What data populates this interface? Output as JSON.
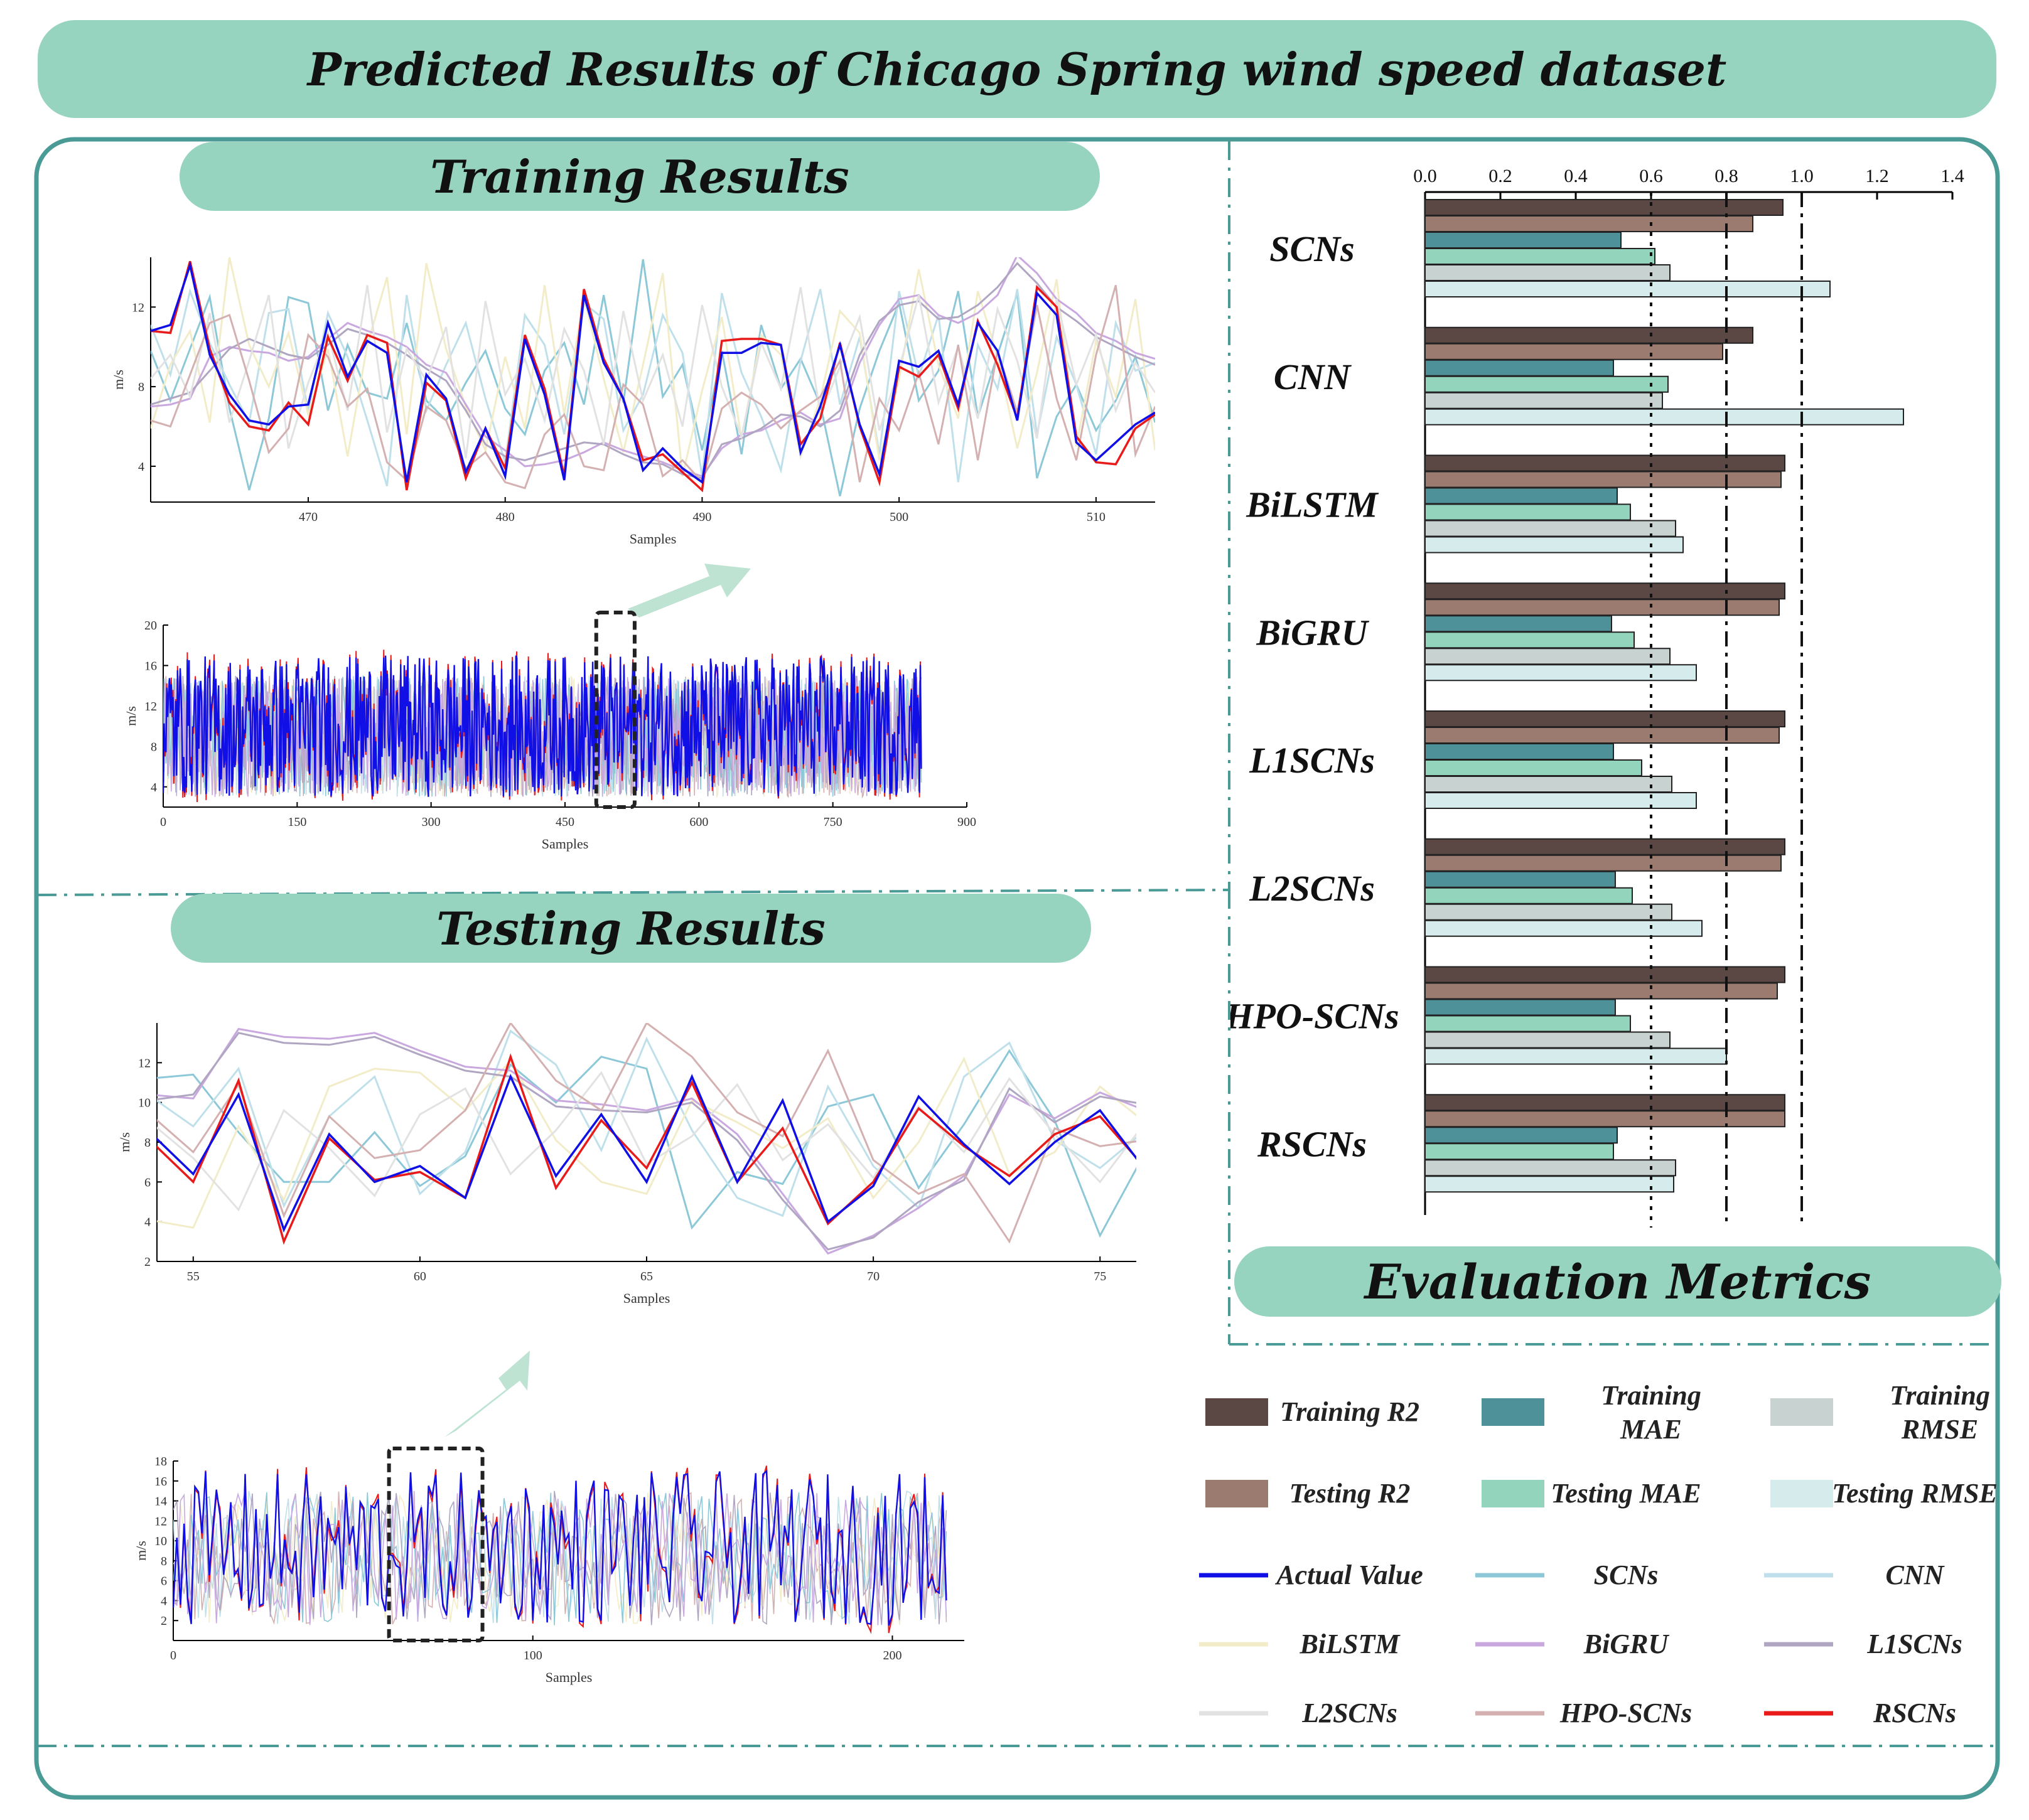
{
  "title": "Predicted Results of Chicago Spring wind speed dataset",
  "sections": {
    "training": "Training Results",
    "testing": "Testing Results",
    "evaluation": "Evaluation Metrics"
  },
  "colors": {
    "pill": "#97d4c0",
    "frame": "#4a9a96",
    "actual": "#1010e6",
    "rscns": "#e81a1a",
    "train_r2": "#5b4743",
    "test_r2": "#9b7b70",
    "train_mae": "#4f9199",
    "test_mae": "#93d4bc",
    "train_rmse": "#c8d2d0",
    "test_rmse": "#d6ebec"
  },
  "legend": [
    {
      "label": "Training R2",
      "type": "box",
      "color": "#5b4743"
    },
    {
      "label": "Training MAE",
      "type": "box",
      "color": "#4f9199"
    },
    {
      "label": "Training RMSE",
      "type": "box",
      "color": "#c8d2d0"
    },
    {
      "label": "Testing R2",
      "type": "box",
      "color": "#9b7b70"
    },
    {
      "label": "Testing MAE",
      "type": "box",
      "color": "#93d4bc"
    },
    {
      "label": "Testing RMSE",
      "type": "box",
      "color": "#d6ebec"
    },
    {
      "label": "Actual Value",
      "type": "line",
      "color": "#1010e6"
    },
    {
      "label": "SCNs",
      "type": "line",
      "color": "#8cc8d8"
    },
    {
      "label": "CNN",
      "type": "line",
      "color": "#bfe0ea"
    },
    {
      "label": "BiLSTM",
      "type": "line",
      "color": "#f2ecc8"
    },
    {
      "label": "BiGRU",
      "type": "line",
      "color": "#c9a8e0"
    },
    {
      "label": "L1SCNs",
      "type": "line",
      "color": "#b0a6c2"
    },
    {
      "label": "L2SCNs",
      "type": "line",
      "color": "#e2e2e2"
    },
    {
      "label": "HPO-SCNs",
      "type": "line",
      "color": "#d4b0b0"
    },
    {
      "label": "RSCNs",
      "type": "line",
      "color": "#e81a1a"
    }
  ],
  "chart_data": [
    {
      "id": "metrics",
      "type": "bar",
      "title": "Evaluation Metrics",
      "orientation": "horizontal",
      "categories": [
        "SCNs",
        "CNN",
        "BiLSTM",
        "BiGRU",
        "L1SCNs",
        "L2SCNs",
        "HPO-SCNs",
        "RSCNs"
      ],
      "series": [
        {
          "name": "Training R2",
          "values": [
            0.95,
            0.87,
            0.955,
            0.955,
            0.955,
            0.955,
            0.955,
            0.955
          ]
        },
        {
          "name": "Testing R2",
          "values": [
            0.87,
            0.79,
            0.945,
            0.94,
            0.94,
            0.945,
            0.935,
            0.955
          ]
        },
        {
          "name": "Training MAE",
          "values": [
            0.52,
            0.5,
            0.51,
            0.495,
            0.5,
            0.505,
            0.505,
            0.51
          ]
        },
        {
          "name": "Testing MAE",
          "values": [
            0.61,
            0.645,
            0.545,
            0.555,
            0.575,
            0.55,
            0.545,
            0.5
          ]
        },
        {
          "name": "Training RMSE",
          "values": [
            0.65,
            0.63,
            0.665,
            0.65,
            0.655,
            0.655,
            0.65,
            0.665
          ]
        },
        {
          "name": "Testing RMSE",
          "values": [
            1.075,
            1.27,
            0.685,
            0.72,
            0.72,
            0.735,
            0.8,
            0.66
          ]
        }
      ],
      "xlim": [
        0,
        1.4
      ],
      "xticks": [
        "0.0",
        "0.2",
        "0.4",
        "0.6",
        "0.8",
        "1.0",
        "1.2",
        "1.4"
      ],
      "reference_lines": [
        0.6,
        0.8,
        1.0
      ]
    },
    {
      "id": "train-zoom",
      "type": "line",
      "xlabel": "Samples",
      "ylabel": "m/s",
      "xlim": [
        462,
        513
      ],
      "ylim": [
        2.2,
        14.5
      ],
      "xticks": [
        470,
        480,
        490,
        500,
        510
      ],
      "yticks": [
        4,
        8,
        12
      ],
      "x": [
        462,
        463,
        464,
        465,
        466,
        467,
        468,
        469,
        470,
        471,
        472,
        473,
        474,
        475,
        476,
        477,
        478,
        479,
        480,
        481,
        482,
        483,
        484,
        485,
        486,
        487,
        488,
        489,
        490,
        491,
        492,
        493,
        494,
        495,
        496,
        497,
        498,
        499,
        500,
        501,
        502,
        503,
        504,
        505,
        506,
        507,
        508,
        509,
        510,
        511,
        512,
        513
      ],
      "actual": [
        10.8,
        11.1,
        14.1,
        9.6,
        7.6,
        6.3,
        6.1,
        7.0,
        7.1,
        11.2,
        8.5,
        10.3,
        9.7,
        3.2,
        8.6,
        7.4,
        3.7,
        5.9,
        3.5,
        10.4,
        7.6,
        3.3,
        12.6,
        9.2,
        7.4,
        3.8,
        4.9,
        3.9,
        3.2,
        9.7,
        9.7,
        10.2,
        10.1,
        4.7,
        7.0,
        10.1,
        6.1,
        3.6,
        9.3,
        9.0,
        9.8,
        7.1,
        11.2,
        9.8,
        6.3,
        12.7,
        11.6,
        5.2,
        4.3,
        5.2,
        6.1,
        6.7
      ],
      "rscns": [
        10.8,
        10.7,
        14.3,
        9.9,
        7.2,
        6.0,
        5.8,
        7.2,
        6.1,
        10.5,
        8.3,
        10.6,
        10.2,
        2.8,
        8.2,
        7.3,
        3.4,
        5.9,
        3.9,
        10.6,
        7.9,
        3.5,
        12.9,
        9.4,
        7.4,
        4.3,
        4.6,
        3.7,
        2.8,
        10.3,
        10.4,
        10.4,
        10.1,
        5.1,
        6.4,
        10.2,
        6.0,
        3.2,
        9.0,
        8.5,
        9.6,
        6.9,
        11.3,
        9.1,
        6.4,
        13.0,
        12.0,
        5.5,
        4.2,
        4.1,
        5.9,
        6.6
      ],
      "others": [
        {
          "color": "#8cc8d8",
          "values": [
            9.8,
            7.3,
            9.9,
            12.5,
            6.9,
            2.8,
            6.4,
            12.5,
            12.2,
            6.8,
            10.1,
            7.7,
            7.4,
            11.2,
            7.3,
            6.3,
            8.2,
            9.8,
            6.9,
            5.6,
            8.8,
            10.2,
            7.1,
            12.6,
            7.2,
            14.4,
            7.5,
            9.1,
            4.8,
            9.8,
            4.6,
            11.1,
            7.9,
            9.4,
            7.1,
            2.5,
            6.9,
            9.8,
            12.2,
            7.3,
            8.8,
            12.8,
            6.5,
            9.6,
            12.7,
            3.4,
            6.5,
            8.1,
            5.8,
            7.3,
            9.5,
            6.2
          ]
        },
        {
          "color": "#bfe0ea",
          "values": [
            11.1,
            8.6,
            12.8,
            10.2,
            8.1,
            6.2,
            11.7,
            11.9,
            6.8,
            11.7,
            9.5,
            6.3,
            3.0,
            12.6,
            6.8,
            9.1,
            11.2,
            7.4,
            4.2,
            11.6,
            10.1,
            5.6,
            12.2,
            11.4,
            5.8,
            7.6,
            11.6,
            9.7,
            3.5,
            12.7,
            8.7,
            6.5,
            3.8,
            9.3,
            12.9,
            7.1,
            10.5,
            4.6,
            12.8,
            8.5,
            11.6,
            3.2,
            10.1,
            7.9,
            12.9,
            5.6,
            10.5,
            8.1,
            4.6,
            11.2,
            8.8,
            9.2
          ]
        },
        {
          "color": "#f2ecc8",
          "values": [
            5.9,
            9.1,
            10.8,
            6.2,
            14.5,
            10.1,
            8.0,
            10.7,
            6.6,
            9.9,
            4.5,
            10.1,
            13.5,
            5.6,
            14.2,
            9.9,
            7.0,
            4.8,
            9.5,
            5.9,
            13.1,
            6.6,
            12.5,
            8.4,
            4.7,
            9.1,
            13.7,
            3.5,
            7.8,
            11.5,
            5.4,
            10.6,
            9.6,
            4.5,
            7.4,
            11.8,
            10.7,
            4.3,
            8.4,
            13.9,
            9.1,
            6.4,
            12.8,
            9.5,
            4.9,
            8.7,
            13.4,
            5.0,
            10.3,
            7.5,
            12.4,
            4.8
          ]
        },
        {
          "color": "#c9a8e0",
          "values": [
            7.0,
            7.1,
            7.4,
            9.5,
            10.0,
            9.8,
            9.7,
            9.3,
            9.5,
            10.4,
            11.2,
            10.8,
            10.5,
            10.0,
            9.1,
            8.7,
            7.1,
            5.5,
            4.8,
            4.0,
            4.1,
            4.3,
            4.7,
            5.2,
            4.8,
            4.5,
            4.2,
            3.8,
            3.5,
            4.9,
            5.6,
            5.8,
            6.3,
            6.7,
            6.1,
            6.4,
            9.2,
            11.1,
            12.4,
            12.6,
            11.6,
            11.2,
            11.7,
            12.6,
            14.6,
            13.7,
            12.4,
            11.7,
            10.7,
            10.3,
            9.7,
            9.4
          ]
        },
        {
          "color": "#b0a6c2",
          "values": [
            7.1,
            7.4,
            7.7,
            8.8,
            9.9,
            10.4,
            10.0,
            9.6,
            9.4,
            10.1,
            10.9,
            10.6,
            10.2,
            9.6,
            8.9,
            8.3,
            6.8,
            5.1,
            4.5,
            4.3,
            4.6,
            4.9,
            5.2,
            5.1,
            4.6,
            4.2,
            4.1,
            3.6,
            3.4,
            5.1,
            5.4,
            5.9,
            6.6,
            6.5,
            6.0,
            6.8,
            9.6,
            11.3,
            12.1,
            12.3,
            11.4,
            11.5,
            12.1,
            13.0,
            14.2,
            13.2,
            12.0,
            11.3,
            10.5,
            10.0,
            9.5,
            9.1
          ]
        },
        {
          "color": "#e2e2e2",
          "values": [
            8.4,
            9.6,
            7.5,
            11.7,
            6.2,
            9.3,
            12.6,
            4.9,
            8.2,
            10.7,
            6.8,
            13.1,
            5.7,
            9.9,
            8.3,
            11.0,
            4.4,
            12.3,
            7.6,
            9.4,
            6.3,
            10.9,
            8.8,
            5.1,
            11.8,
            7.3,
            9.6,
            6.0,
            12.1,
            8.0,
            5.5,
            10.2,
            7.9,
            13.0,
            6.6,
            9.0,
            11.5,
            5.8,
            8.9,
            12.6,
            7.2,
            10.0,
            6.4,
            11.9,
            9.3,
            5.4,
            12.4,
            8.1,
            10.6,
            6.8,
            9.2,
            7.7
          ]
        },
        {
          "color": "#d4b0b0",
          "values": [
            6.3,
            6.0,
            8.6,
            11.2,
            11.6,
            8.3,
            4.7,
            5.9,
            10.6,
            9.5,
            7.0,
            7.9,
            4.2,
            3.3,
            7.0,
            6.3,
            3.9,
            4.7,
            3.2,
            2.9,
            5.6,
            6.6,
            4.0,
            3.8,
            8.1,
            7.1,
            3.5,
            4.3,
            3.2,
            6.9,
            7.7,
            7.1,
            5.9,
            6.8,
            7.5,
            9.3,
            3.2,
            7.4,
            5.8,
            8.7,
            5.1,
            10.1,
            4.3,
            9.8,
            6.7,
            12.1,
            7.4,
            4.3,
            9.6,
            13.1,
            4.6,
            7.0
          ]
        }
      ]
    },
    {
      "id": "train-full",
      "type": "line",
      "xlabel": "Samples",
      "ylabel": "m/s",
      "xlim": [
        0,
        900
      ],
      "ylim": [
        2,
        20
      ],
      "xticks": [
        0,
        150,
        300,
        450,
        600,
        750,
        900
      ],
      "yticks": [
        4,
        8,
        12,
        16,
        20
      ],
      "n": 850
    },
    {
      "id": "test-zoom",
      "type": "line",
      "xlabel": "Samples",
      "ylabel": "m/s",
      "xlim": [
        54.2,
        75.8
      ],
      "ylim": [
        2,
        14
      ],
      "xticks": [
        55,
        60,
        65,
        70,
        75
      ],
      "yticks": [
        2,
        4,
        6,
        8,
        10,
        12
      ],
      "x": [
        54,
        55,
        56,
        57,
        58,
        59,
        60,
        61,
        62,
        63,
        64,
        65,
        66,
        67,
        68,
        69,
        70,
        71,
        72,
        73,
        74,
        75,
        76
      ],
      "actual": [
        8.6,
        6.4,
        10.4,
        3.6,
        8.4,
        6.0,
        6.8,
        5.2,
        11.3,
        6.3,
        9.4,
        6.0,
        11.3,
        6.0,
        10.1,
        4.0,
        5.8,
        10.3,
        7.9,
        5.9,
        8.0,
        9.6,
        6.6
      ],
      "rscns": [
        8.2,
        6.0,
        11.1,
        3.0,
        8.2,
        6.1,
        6.5,
        5.2,
        12.3,
        5.7,
        9.1,
        6.7,
        11.0,
        6.0,
        8.7,
        3.9,
        6.0,
        9.7,
        7.8,
        6.3,
        8.4,
        9.3,
        6.7
      ],
      "others": [
        {
          "color": "#8cc8d8",
          "values": [
            11.2,
            11.4,
            8.5,
            6.0,
            6.0,
            8.5,
            5.8,
            7.3,
            11.9,
            10.0,
            12.3,
            11.7,
            3.7,
            6.5,
            5.9,
            9.8,
            10.4,
            5.7,
            8.9,
            12.6,
            9.1,
            3.3,
            7.5
          ]
        },
        {
          "color": "#bfe0ea",
          "values": [
            10.4,
            8.8,
            11.7,
            4.8,
            9.3,
            11.3,
            5.4,
            7.5,
            13.6,
            11.9,
            7.6,
            13.2,
            8.6,
            5.2,
            4.3,
            10.8,
            6.8,
            4.7,
            11.3,
            13.0,
            8.1,
            6.7,
            8.6
          ]
        },
        {
          "color": "#f2ecc8",
          "values": [
            4.1,
            3.7,
            8.8,
            5.1,
            10.8,
            11.7,
            11.5,
            9.6,
            12.1,
            8.1,
            6.0,
            5.4,
            10.1,
            9.0,
            7.7,
            9.2,
            5.2,
            8.0,
            12.2,
            6.4,
            7.5,
            10.8,
            9.0
          ]
        },
        {
          "color": "#c9a8e0",
          "values": [
            10.4,
            10.2,
            13.7,
            13.3,
            13.2,
            13.5,
            12.6,
            11.8,
            11.6,
            10.1,
            9.9,
            9.6,
            10.2,
            8.4,
            5.4,
            2.4,
            3.3,
            4.7,
            6.3,
            10.4,
            9.2,
            10.5,
            9.6
          ]
        },
        {
          "color": "#b0a6c2",
          "values": [
            10.1,
            10.4,
            13.5,
            13.0,
            12.9,
            13.3,
            12.4,
            11.6,
            11.3,
            9.8,
            9.6,
            9.5,
            10.0,
            8.1,
            5.1,
            2.6,
            3.2,
            5.0,
            6.1,
            10.7,
            9.0,
            10.3,
            9.9
          ]
        },
        {
          "color": "#e2e2e2",
          "values": [
            9.1,
            7.2,
            4.6,
            9.6,
            7.7,
            5.3,
            9.4,
            10.7,
            6.4,
            8.6,
            11.5,
            6.9,
            8.3,
            10.9,
            7.1,
            8.9,
            6.2,
            9.8,
            7.5,
            11.2,
            8.4,
            6.0,
            9.0
          ]
        },
        {
          "color": "#d4b0b0",
          "values": [
            9.5,
            7.5,
            10.9,
            4.3,
            9.3,
            7.2,
            7.6,
            9.6,
            14.0,
            11.1,
            9.6,
            14.0,
            12.3,
            9.5,
            8.3,
            12.6,
            7.1,
            5.4,
            6.4,
            3.0,
            8.7,
            7.8,
            8.1
          ]
        }
      ]
    },
    {
      "id": "test-full",
      "type": "line",
      "xlabel": "Samples",
      "ylabel": "m/s",
      "xlim": [
        0,
        220
      ],
      "ylim": [
        0,
        18
      ],
      "xticks": [
        0,
        100,
        200
      ],
      "yticks": [
        2,
        4,
        6,
        8,
        10,
        12,
        14,
        16,
        18
      ],
      "n": 216
    }
  ]
}
